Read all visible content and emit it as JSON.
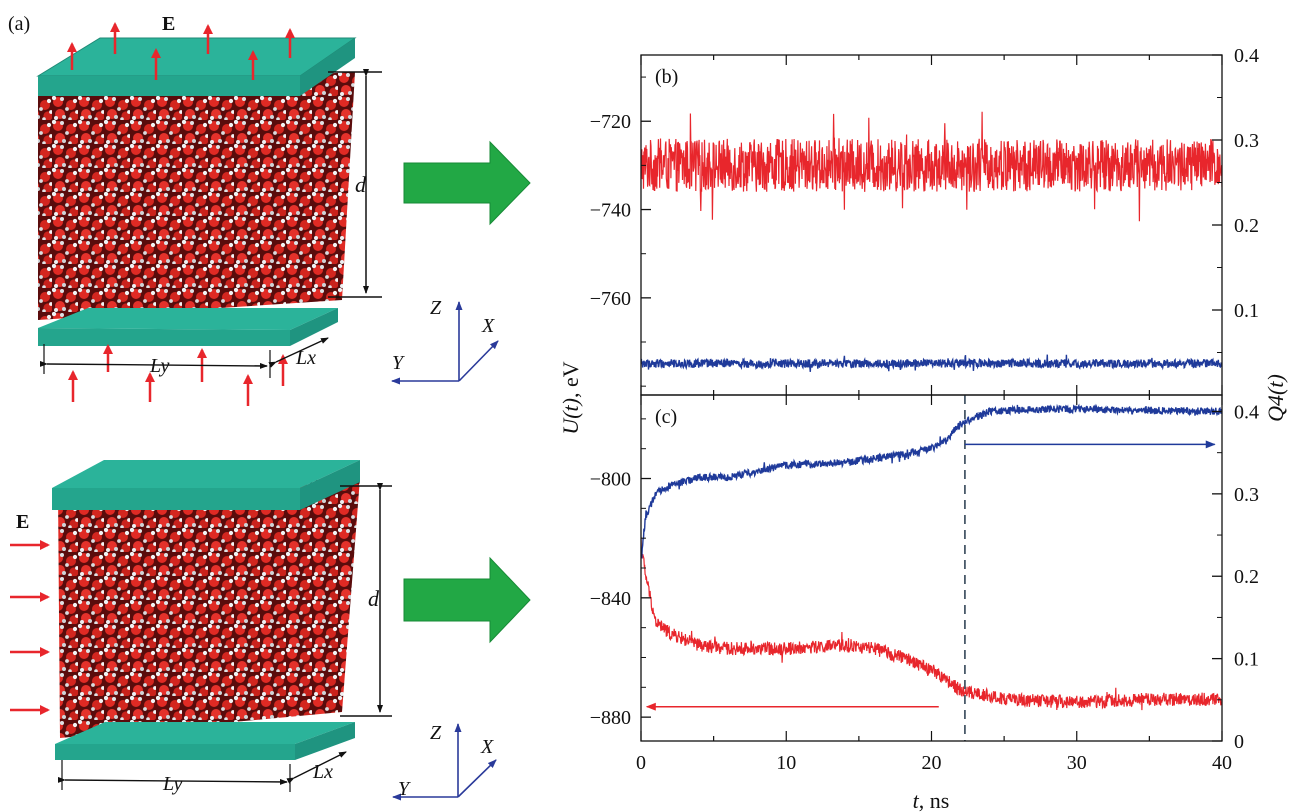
{
  "panel_a": {
    "label": "(a)",
    "field_label": "E",
    "thickness_label": "d",
    "width_label_y": "Ly",
    "width_label_x": "Lx",
    "axes": {
      "z": "Z",
      "x": "X",
      "y": "Y"
    }
  },
  "colors": {
    "energy": "#e8262c",
    "order": "#1f3a9a",
    "plate": "#2bb39a",
    "field_arrow": "#e8262c",
    "flow_arrow": "#22a845",
    "axes_triad": "#2a3a9a"
  },
  "chart_data": [
    {
      "id": "b",
      "type": "line",
      "panel_label": "(b)",
      "x": {
        "range": [
          0,
          40
        ]
      },
      "y_left": {
        "range": [
          -782,
          -705
        ],
        "ticks": [
          -720,
          -740,
          -760
        ]
      },
      "y_right": {
        "range": [
          0.0,
          0.4
        ],
        "ticks": [
          0.4,
          0.3,
          0.2,
          0.1
        ]
      },
      "series": [
        {
          "axis": "left",
          "color": "#e8262c",
          "mean": -730,
          "fluctuation": 6,
          "points": [
            [
              0,
              -730
            ],
            [
              40,
              -730
            ]
          ]
        },
        {
          "axis": "right",
          "color": "#1f3a9a",
          "mean": 0.037,
          "fluctuation": 0.005,
          "points": [
            [
              0,
              0.037
            ],
            [
              40,
              0.037
            ]
          ]
        }
      ]
    },
    {
      "id": "c",
      "type": "line",
      "panel_label": "(c)",
      "x": {
        "range": [
          0,
          40
        ],
        "ticks": [
          0,
          10,
          20,
          30,
          40
        ],
        "label_var": "t",
        "label_unit": ", ns"
      },
      "y_left": {
        "range": [
          -888,
          -772
        ],
        "ticks": [
          -800,
          -840,
          -880
        ],
        "label_var": "U(t)",
        "label_unit": ", eV"
      },
      "y_right": {
        "range": [
          0.0,
          0.42
        ],
        "ticks": [
          0.4,
          0.3,
          0.2,
          0.1,
          0
        ],
        "label": "Q4(t)"
      },
      "vertical_marker_x": 22.3,
      "series": [
        {
          "axis": "left",
          "color": "#e8262c",
          "fluctuation": 2.2,
          "points": [
            [
              0,
              -822
            ],
            [
              0.3,
              -832
            ],
            [
              1,
              -848
            ],
            [
              2,
              -852
            ],
            [
              4,
              -856
            ],
            [
              6,
              -857
            ],
            [
              10,
              -857
            ],
            [
              14,
              -856
            ],
            [
              16,
              -857
            ],
            [
              18,
              -860
            ],
            [
              20,
              -864
            ],
            [
              22,
              -871
            ],
            [
              25,
              -874
            ],
            [
              30,
              -875
            ],
            [
              35,
              -874
            ],
            [
              40,
              -874
            ]
          ]
        },
        {
          "axis": "right",
          "color": "#1f3a9a",
          "fluctuation": 0.0045,
          "points": [
            [
              0,
              0.22
            ],
            [
              0.3,
              0.27
            ],
            [
              1,
              0.3
            ],
            [
              2,
              0.31
            ],
            [
              4,
              0.32
            ],
            [
              6,
              0.32
            ],
            [
              10,
              0.335
            ],
            [
              14,
              0.338
            ],
            [
              17,
              0.345
            ],
            [
              20,
              0.355
            ],
            [
              21,
              0.365
            ],
            [
              22,
              0.385
            ],
            [
              24,
              0.4
            ],
            [
              28,
              0.403
            ],
            [
              32,
              0.402
            ],
            [
              36,
              0.401
            ],
            [
              40,
              0.4
            ]
          ]
        }
      ],
      "annotations": [
        {
          "type": "arrow",
          "color": "#1f3a9a",
          "axis": "right",
          "from": [
            22.3,
            0.36
          ],
          "to": [
            39.5,
            0.36
          ]
        },
        {
          "type": "arrow",
          "color": "#e8262c",
          "axis": "left",
          "from": [
            20.5,
            -876.5
          ],
          "to": [
            0.4,
            -876.5
          ]
        }
      ]
    }
  ]
}
